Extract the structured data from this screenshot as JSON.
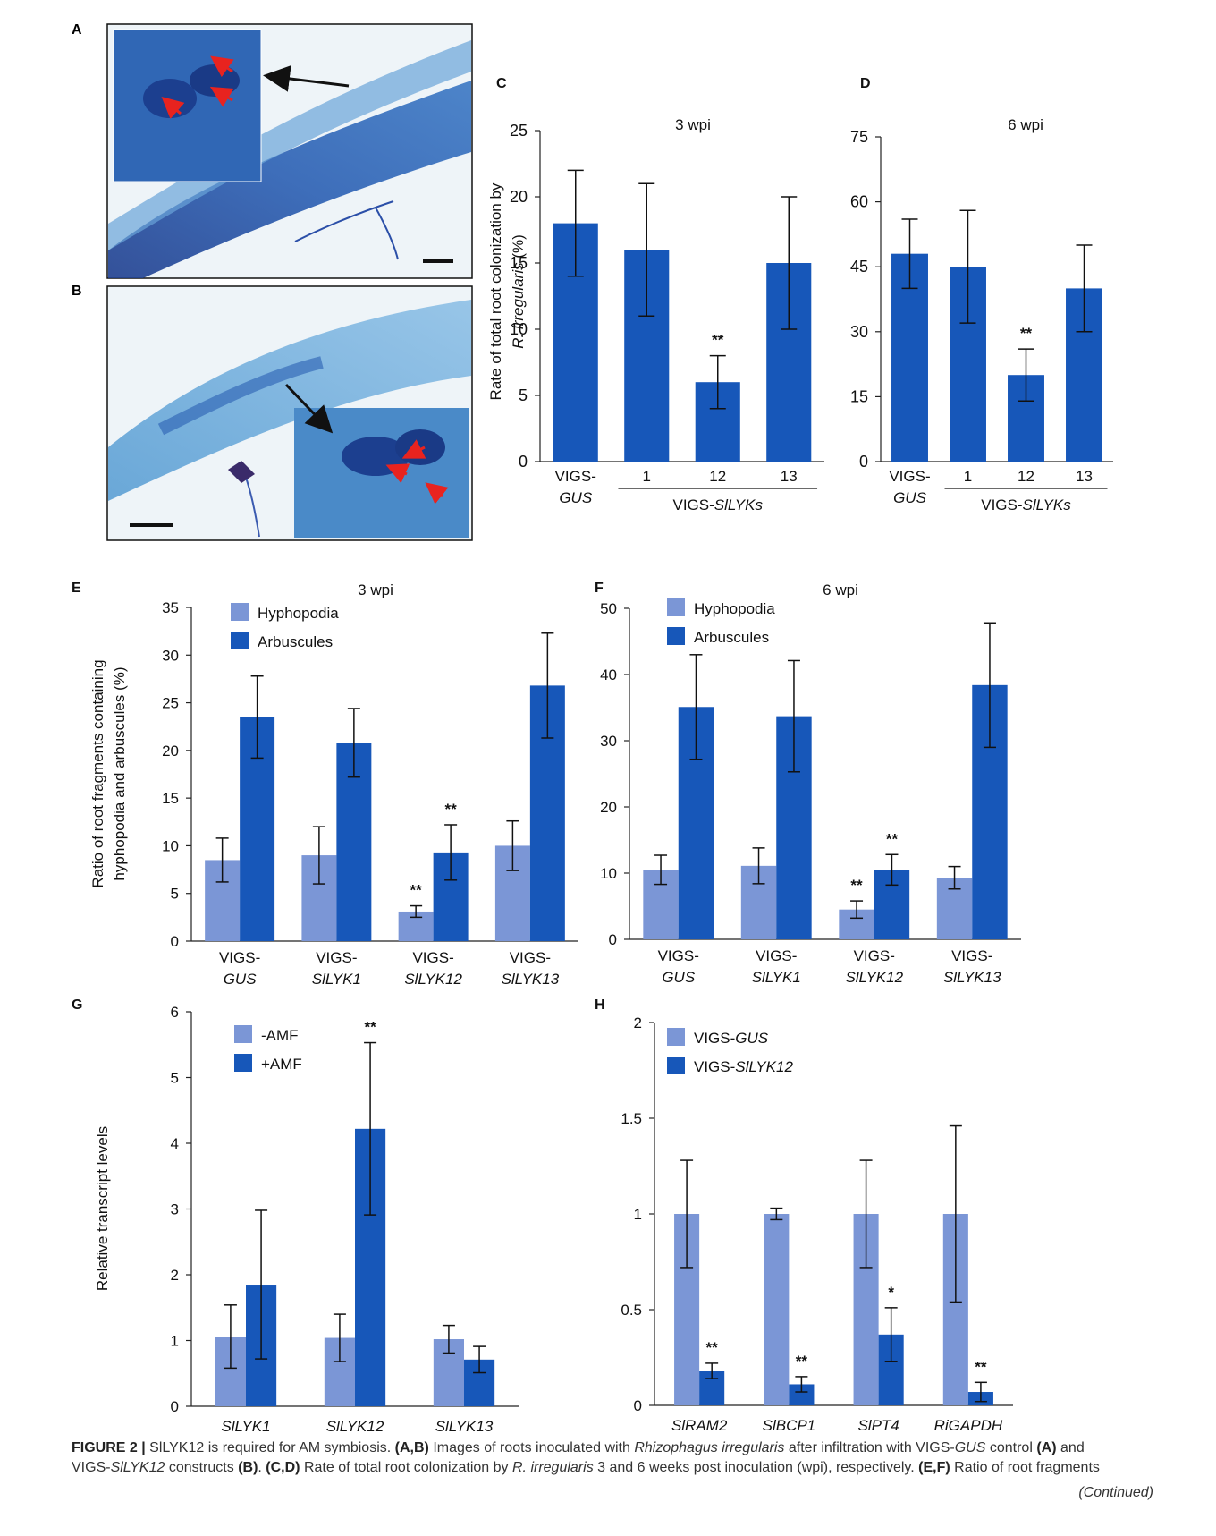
{
  "chart_data": [
    {
      "panel": "A",
      "type": "image",
      "description_labels": []
    },
    {
      "panel": "B",
      "type": "image",
      "description_labels": []
    },
    {
      "panel": "C",
      "type": "bar",
      "title": "3 wpi",
      "ylabel_line1": "Rate of total root colonization by",
      "ylabel_line2_italic": "R. irregularis",
      "ylabel_line2_rest": " (%)",
      "ylim": [
        0,
        25
      ],
      "yticks": [
        0,
        5,
        10,
        15,
        20,
        25
      ],
      "categories": [
        {
          "l1": "VIGS-",
          "l2": "GUS",
          "l2_italic": true
        },
        {
          "l1": "1",
          "l2": ""
        },
        {
          "l1": "12",
          "l2": ""
        },
        {
          "l1": "13",
          "l2": ""
        }
      ],
      "group_label_prefix": "VIGS-",
      "group_label_italic": "SlLYKs",
      "values": [
        18,
        16,
        6,
        15
      ],
      "errors": [
        4,
        5,
        2,
        5
      ],
      "sig": [
        "",
        "",
        "**",
        ""
      ]
    },
    {
      "panel": "D",
      "type": "bar",
      "title": "6 wpi",
      "ylim": [
        0,
        75
      ],
      "yticks": [
        0,
        15,
        30,
        45,
        60,
        75
      ],
      "categories": [
        {
          "l1": "VIGS-",
          "l2": "GUS",
          "l2_italic": true
        },
        {
          "l1": "1",
          "l2": ""
        },
        {
          "l1": "12",
          "l2": ""
        },
        {
          "l1": "13",
          "l2": ""
        }
      ],
      "group_label_prefix": "VIGS-",
      "group_label_italic": "SlLYKs",
      "values": [
        48,
        45,
        20,
        40
      ],
      "errors": [
        8,
        13,
        6,
        10
      ],
      "sig": [
        "",
        "",
        "**",
        ""
      ]
    },
    {
      "panel": "E",
      "type": "bar",
      "title": "3 wpi",
      "ylabel_line1": "Ratio of root fragments containing",
      "ylabel_line2": "hyphopodia and arbuscules (%)",
      "ylim": [
        0,
        35
      ],
      "yticks": [
        0,
        5,
        10,
        15,
        20,
        25,
        30,
        35
      ],
      "categories": [
        {
          "l1": "VIGS-",
          "l2": "GUS"
        },
        {
          "l1": "VIGS-",
          "l2": "SlLYK1"
        },
        {
          "l1": "VIGS-",
          "l2": "SlLYK12"
        },
        {
          "l1": "VIGS-",
          "l2": "SlLYK13"
        }
      ],
      "series": [
        {
          "name": "Hyphopodia",
          "values": [
            8.5,
            9.0,
            3.1,
            10.0
          ],
          "errors": [
            2.3,
            3.0,
            0.6,
            2.6
          ],
          "sig": [
            "",
            "",
            "**",
            ""
          ]
        },
        {
          "name": "Arbuscules",
          "values": [
            23.5,
            20.8,
            9.3,
            26.8
          ],
          "errors": [
            4.3,
            3.6,
            2.9,
            5.5
          ],
          "sig": [
            "",
            "",
            "**",
            ""
          ]
        }
      ],
      "legend": "top-left"
    },
    {
      "panel": "F",
      "type": "bar",
      "title": "6 wpi",
      "ylim": [
        0,
        50
      ],
      "yticks": [
        0,
        10,
        20,
        30,
        40,
        50
      ],
      "categories": [
        {
          "l1": "VIGS-",
          "l2": "GUS"
        },
        {
          "l1": "VIGS-",
          "l2": "SlLYK1"
        },
        {
          "l1": "VIGS-",
          "l2": "SlLYK12"
        },
        {
          "l1": "VIGS-",
          "l2": "SlLYK13"
        }
      ],
      "series": [
        {
          "name": "Hyphopodia",
          "values": [
            10.5,
            11.1,
            4.5,
            9.3
          ],
          "errors": [
            2.2,
            2.7,
            1.3,
            1.7
          ],
          "sig": [
            "",
            "",
            "**",
            ""
          ]
        },
        {
          "name": "Arbuscules",
          "values": [
            35.1,
            33.7,
            10.5,
            38.4
          ],
          "errors": [
            7.9,
            8.4,
            2.3,
            9.4
          ],
          "sig": [
            "",
            "",
            "**",
            ""
          ]
        }
      ],
      "legend": "top-left"
    },
    {
      "panel": "G",
      "type": "bar",
      "ylabel": "Relative transcript levels",
      "ylim": [
        0,
        6
      ],
      "yticks": [
        0,
        1,
        2,
        3,
        4,
        5,
        6
      ],
      "categories": [
        {
          "l1": "SlLYK1",
          "l2": ""
        },
        {
          "l1": "SlLYK12",
          "l2": ""
        },
        {
          "l1": "SlLYK13",
          "l2": ""
        }
      ],
      "series": [
        {
          "name": "-AMF",
          "values": [
            1.06,
            1.04,
            1.02
          ],
          "errors": [
            0.48,
            0.36,
            0.21
          ],
          "sig": [
            "",
            "",
            ""
          ]
        },
        {
          "name": "+AMF",
          "values": [
            1.85,
            4.22,
            0.71
          ],
          "errors": [
            1.13,
            1.31,
            0.2
          ],
          "sig": [
            "",
            "**",
            ""
          ]
        }
      ],
      "legend": "top-left"
    },
    {
      "panel": "H",
      "type": "bar",
      "ylim": [
        0,
        2
      ],
      "yticks": [
        0,
        0.5,
        1,
        1.5,
        2
      ],
      "ytick_labels": [
        "0",
        "0.5",
        "1",
        "1.5",
        "2"
      ],
      "categories": [
        {
          "l1": "SlRAM2",
          "l2": ""
        },
        {
          "l1": "SlBCP1",
          "l2": ""
        },
        {
          "l1": "SlPT4",
          "l2": ""
        },
        {
          "l1": "RiGAPDH",
          "l2": ""
        }
      ],
      "series": [
        {
          "name": "VIGS-GUS",
          "name_prefix": "VIGS-",
          "name_italic": "GUS",
          "values": [
            1.0,
            1.0,
            1.0,
            1.0
          ],
          "errors": [
            0.28,
            0.03,
            0.28,
            0.46
          ],
          "sig": [
            "",
            "",
            "",
            ""
          ]
        },
        {
          "name": "VIGS-SlLYK12",
          "name_prefix": "VIGS-",
          "name_italic": "SlLYK12",
          "values": [
            0.18,
            0.11,
            0.37,
            0.07
          ],
          "errors": [
            0.04,
            0.04,
            0.14,
            0.05
          ],
          "sig": [
            "**",
            "**",
            "*",
            "**"
          ]
        }
      ],
      "legend": "top-left"
    }
  ],
  "colors": {
    "light_bar": "#7b96d6",
    "dark_bar": "#1757b9",
    "axis": "#222222"
  },
  "caption": {
    "label": "FIGURE 2 |",
    "title": "SlLYK12 is required for AM symbiosis.",
    "p1_panels": "(A,B)",
    "p1_text_a": "Images of roots inoculated with",
    "p1_species": "Rhizophagus irregularis",
    "p1_text_b": "after infiltration with VIGS-",
    "p1_gus": "GUS",
    "p1_text_c": "control",
    "p1_A": "(A)",
    "p1_text_d": "and",
    "p2_prefix": "VIGS-",
    "p2_gene": "SlLYK12",
    "p2_text_a": "constructs",
    "p2_B": "(B)",
    "p2_panels_cd": "(C,D)",
    "p2_text_b": "Rate of total root colonization by",
    "p2_species": "R. irregularis",
    "p2_text_c": "3 and 6 weeks post inoculation (wpi), respectively.",
    "p2_panels_ef": "(E,F)",
    "p2_text_d": "Ratio of root fragments",
    "continued": "(Continued)"
  }
}
